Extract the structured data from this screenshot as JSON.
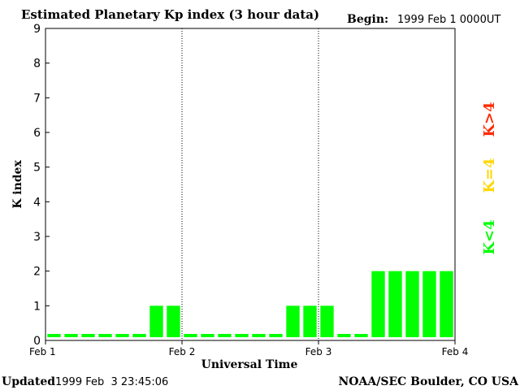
{
  "header": {
    "title": "Estimated Planetary Kp index (3 hour data)",
    "begin_label": "Begin:",
    "begin_value": "1999 Feb 1 0000UT"
  },
  "footer": {
    "updated_label": "Updated",
    "updated_value": "1999 Feb  3 23:45:06",
    "source": "NOAA/SEC Boulder, CO USA"
  },
  "legend": {
    "low": "K<4",
    "mid": "K=4",
    "high": "K>4"
  },
  "colors": {
    "low": "#00ff00",
    "mid": "#ffd700",
    "high": "#ff2a00",
    "axis": "#000000",
    "background": "#ffffff"
  },
  "chart_data": {
    "type": "bar",
    "title": "Estimated Planetary Kp index (3 hour data)",
    "xlabel": "Universal Time",
    "ylabel": "K index",
    "ylim": [
      0,
      9
    ],
    "yticks": [
      0,
      1,
      2,
      3,
      4,
      5,
      6,
      7,
      8,
      9
    ],
    "x_tick_labels": [
      "Feb 1",
      "Feb 2",
      "Feb 3",
      "Feb 4"
    ],
    "day_separators": [
      "Feb 2",
      "Feb 3"
    ],
    "interval_hours": 3,
    "series": [
      {
        "values": [
          0,
          0,
          0,
          0,
          0,
          0,
          1,
          1,
          0,
          0,
          0,
          0,
          0,
          0,
          1,
          1,
          1,
          0,
          0,
          2,
          2,
          2,
          2,
          2
        ]
      }
    ],
    "color_thresholds": {
      "low_below": 4,
      "mid_equal": 4,
      "high_above": 4
    },
    "grid": false,
    "legend_position": "right"
  }
}
